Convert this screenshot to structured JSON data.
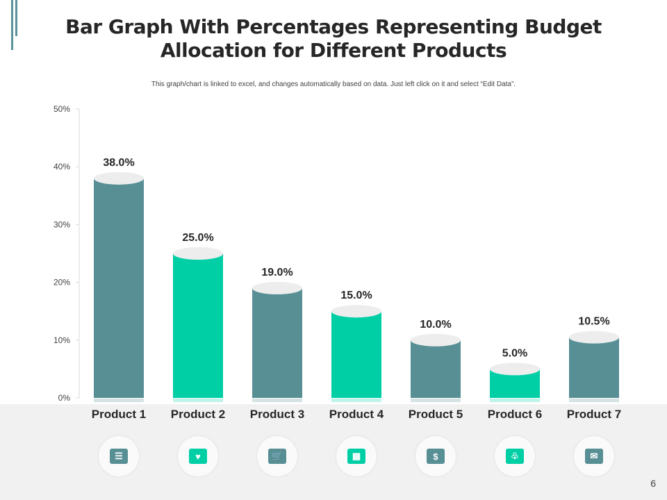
{
  "title": "Bar Graph With Percentages Representing Budget Allocation for Different   Products",
  "subtitle": "This graph/chart is linked to excel, and changes automatically based on data. Just left click on it and select “Edit Data”.",
  "page_number": "6",
  "colors": {
    "primary": "#578F95",
    "accent": "#00CFA6",
    "bar_cap": "#EDEDED",
    "band": "#F1F1F1"
  },
  "icons": [
    "checklist-icon",
    "box-heart-icon",
    "cart-box-icon",
    "stacked-boxes-icon",
    "money-people-icon",
    "hands-box-icon",
    "open-box-icon"
  ],
  "chart_data": {
    "type": "bar",
    "categories": [
      "Product 1",
      "Product 2",
      "Product 3",
      "Product 4",
      "Product 5",
      "Product 6",
      "Product 7"
    ],
    "values": [
      38.0,
      25.0,
      19.0,
      15.0,
      10.0,
      5.0,
      10.5
    ],
    "data_labels": [
      "38.0%",
      "25.0%",
      "19.0%",
      "15.0%",
      "10.0%",
      "5.0%",
      "10.5%"
    ],
    "bar_colors": [
      "#578F95",
      "#00CFA6",
      "#578F95",
      "#00CFA6",
      "#578F95",
      "#00CFA6",
      "#578F95"
    ],
    "ylim": [
      0,
      50
    ],
    "yticks": [
      "0%",
      "10%",
      "20%",
      "30%",
      "40%",
      "50%"
    ],
    "grid": false,
    "xlabel": "",
    "ylabel": ""
  }
}
